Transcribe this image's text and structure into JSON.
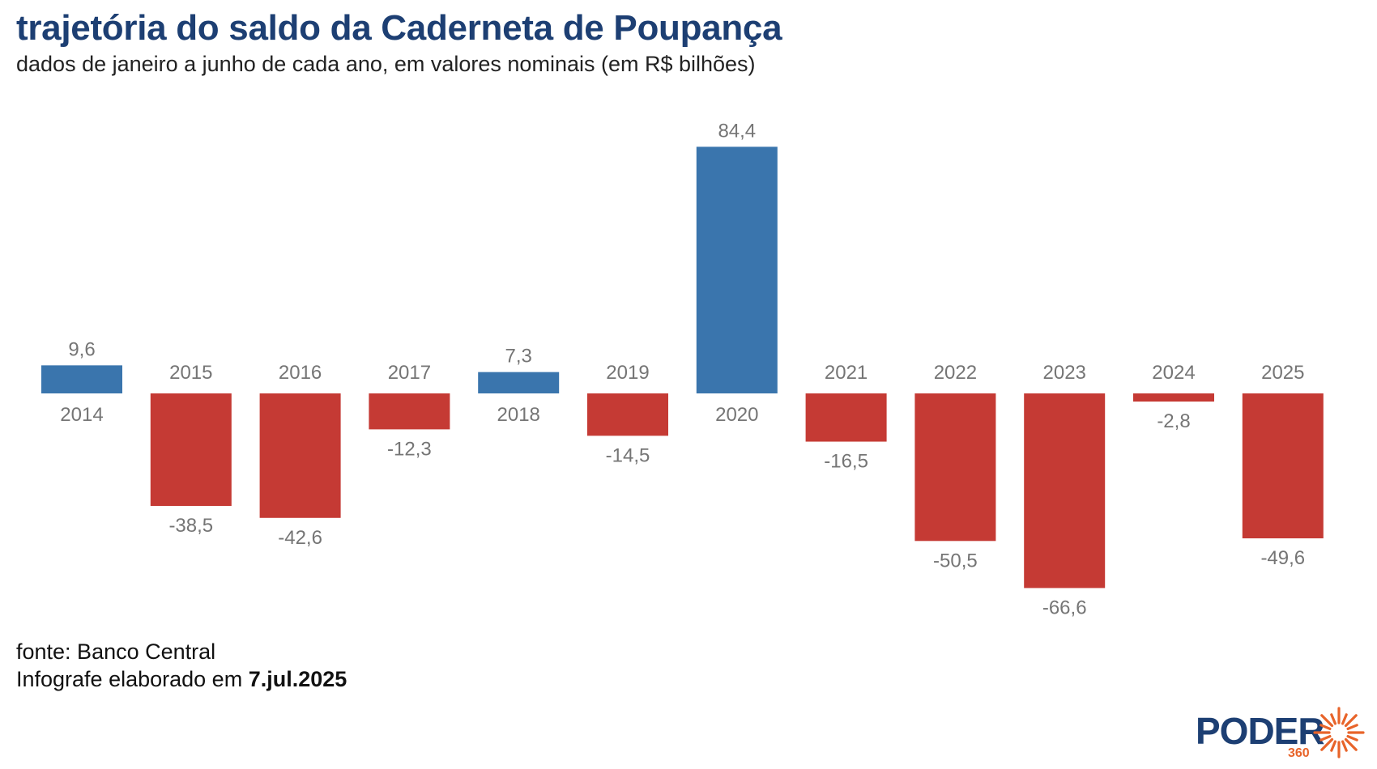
{
  "header": {
    "title": "trajetória do saldo da Caderneta de Poupança",
    "subtitle": "dados de janeiro a junho de cada ano, em valores nominais (em R$ bilhões)"
  },
  "footer": {
    "source": "fonte: Banco Central",
    "credit_prefix": "Infografe elaborado em",
    "credit_date": "7.jul.2025"
  },
  "logo": {
    "word": "PODER",
    "number": "360"
  },
  "colors": {
    "positive": "#3a75ad",
    "negative": "#c53a34",
    "label": "#757575",
    "title": "#1d3f73",
    "logo_accent": "#e8642a"
  },
  "chart_data": {
    "type": "bar",
    "title": "trajetória do saldo da Caderneta de Poupança",
    "xlabel": "",
    "ylabel": "R$ bilhões",
    "categories": [
      "2014",
      "2015",
      "2016",
      "2017",
      "2018",
      "2019",
      "2020",
      "2021",
      "2022",
      "2023",
      "2024",
      "2025"
    ],
    "values": [
      9.6,
      -38.5,
      -42.6,
      -12.3,
      7.3,
      -14.5,
      84.4,
      -16.5,
      -50.5,
      -66.6,
      -2.8,
      -49.6
    ],
    "value_labels": [
      "9,6",
      "-38,5",
      "-42,6",
      "-12,3",
      "7,3",
      "-14,5",
      "84,4",
      "-16,5",
      "-50,5",
      "-66,6",
      "-2,8",
      "-49,6"
    ],
    "ylim": [
      -66.6,
      84.4
    ],
    "grid": false,
    "legend": "none"
  }
}
